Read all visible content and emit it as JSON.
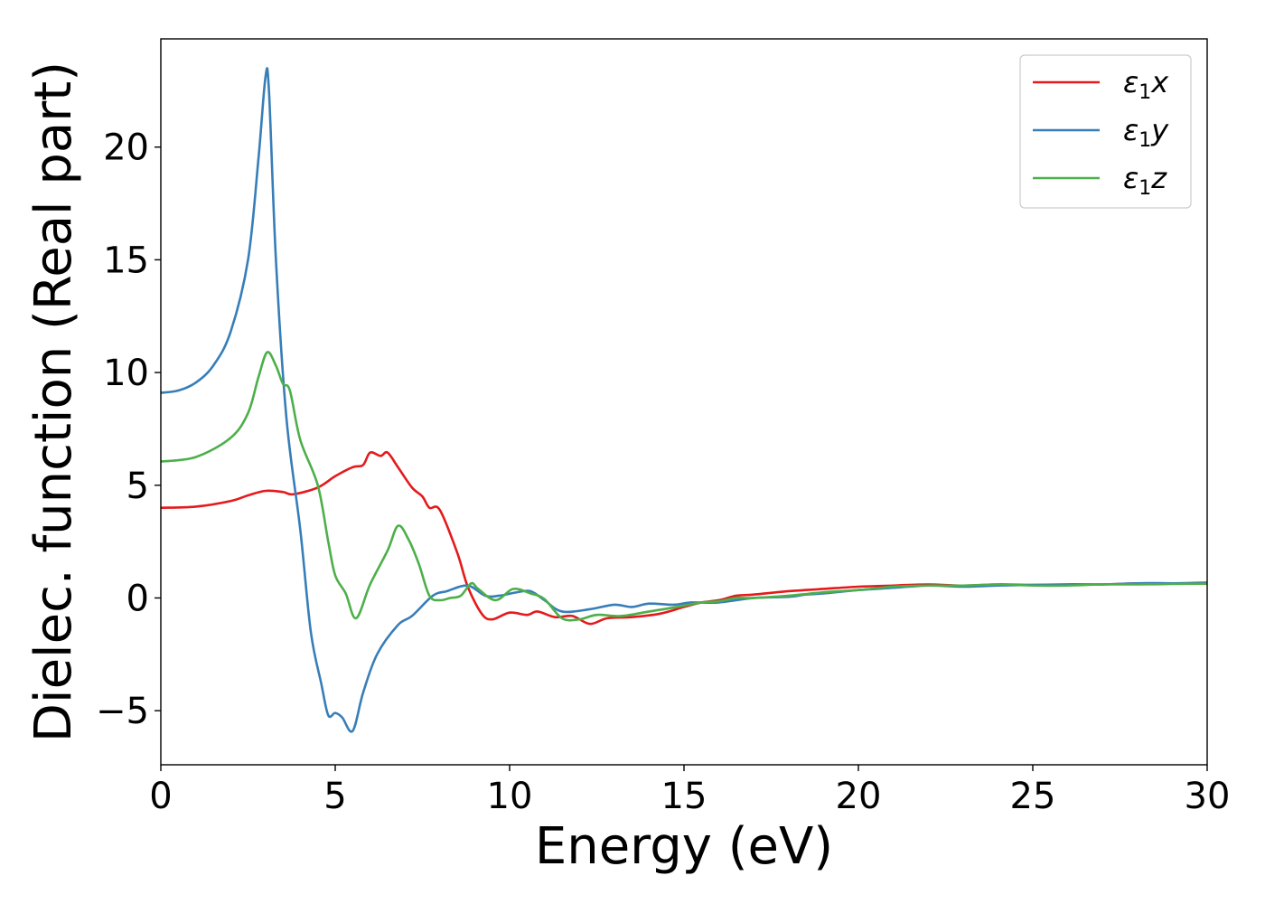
{
  "chart_data": {
    "type": "line",
    "xlabel": "Energy (eV)",
    "ylabel": "Dielec. function (Real part)",
    "xlim": [
      0,
      30
    ],
    "ylim": [
      -7.4,
      24.8
    ],
    "xticks": [
      0,
      5,
      10,
      15,
      20,
      25,
      30
    ],
    "yticks": [
      -5,
      0,
      5,
      10,
      15,
      20
    ],
    "xtick_labels": [
      "0",
      "5",
      "10",
      "15",
      "20",
      "25",
      "30"
    ],
    "ytick_labels": [
      "−5",
      "0",
      "5",
      "10",
      "15",
      "20"
    ],
    "grid": false,
    "legend_position": "top-right",
    "series": [
      {
        "name": "ε₁x",
        "legend_base": "ε",
        "legend_sub": "1",
        "legend_var": "x",
        "color": "#e41a1c",
        "points": [
          [
            0,
            4.0
          ],
          [
            1,
            4.05
          ],
          [
            2,
            4.3
          ],
          [
            2.5,
            4.55
          ],
          [
            3,
            4.75
          ],
          [
            3.5,
            4.7
          ],
          [
            3.8,
            4.6
          ],
          [
            4.5,
            4.9
          ],
          [
            5,
            5.4
          ],
          [
            5.5,
            5.8
          ],
          [
            5.8,
            5.9
          ],
          [
            6,
            6.45
          ],
          [
            6.3,
            6.3
          ],
          [
            6.5,
            6.45
          ],
          [
            6.8,
            5.8
          ],
          [
            7.2,
            4.9
          ],
          [
            7.5,
            4.5
          ],
          [
            7.7,
            4.0
          ],
          [
            8.0,
            3.9
          ],
          [
            8.5,
            2.0
          ],
          [
            8.8,
            0.5
          ],
          [
            9.2,
            -0.7
          ],
          [
            9.5,
            -0.95
          ],
          [
            10,
            -0.65
          ],
          [
            10.5,
            -0.75
          ],
          [
            10.8,
            -0.6
          ],
          [
            11.3,
            -0.85
          ],
          [
            11.8,
            -0.8
          ],
          [
            12.3,
            -1.15
          ],
          [
            12.8,
            -0.9
          ],
          [
            13.5,
            -0.85
          ],
          [
            14.3,
            -0.7
          ],
          [
            15,
            -0.4
          ],
          [
            15.5,
            -0.2
          ],
          [
            16,
            -0.1
          ],
          [
            16.5,
            0.1
          ],
          [
            17,
            0.15
          ],
          [
            18,
            0.3
          ],
          [
            19,
            0.4
          ],
          [
            20,
            0.5
          ],
          [
            21,
            0.55
          ],
          [
            22,
            0.6
          ],
          [
            23,
            0.55
          ],
          [
            24,
            0.6
          ],
          [
            25,
            0.58
          ],
          [
            26,
            0.6
          ],
          [
            27,
            0.6
          ],
          [
            28,
            0.65
          ],
          [
            29,
            0.65
          ],
          [
            30,
            0.68
          ]
        ]
      },
      {
        "name": "ε₁y",
        "legend_base": "ε",
        "legend_sub": "1",
        "legend_var": "y",
        "color": "#377eb8",
        "points": [
          [
            0,
            9.1
          ],
          [
            0.5,
            9.2
          ],
          [
            1,
            9.55
          ],
          [
            1.5,
            10.3
          ],
          [
            2,
            11.8
          ],
          [
            2.5,
            15.0
          ],
          [
            2.8,
            19.5
          ],
          [
            3.0,
            23.1
          ],
          [
            3.1,
            22.5
          ],
          [
            3.3,
            15.0
          ],
          [
            3.6,
            8.0
          ],
          [
            4.0,
            3.0
          ],
          [
            4.3,
            -1.5
          ],
          [
            4.6,
            -3.8
          ],
          [
            4.8,
            -5.2
          ],
          [
            5.0,
            -5.1
          ],
          [
            5.2,
            -5.3
          ],
          [
            5.5,
            -5.9
          ],
          [
            5.8,
            -4.2
          ],
          [
            6.2,
            -2.5
          ],
          [
            6.8,
            -1.2
          ],
          [
            7.2,
            -0.8
          ],
          [
            7.8,
            0.1
          ],
          [
            8.2,
            0.3
          ],
          [
            8.8,
            0.55
          ],
          [
            9.3,
            0.1
          ],
          [
            9.7,
            0.1
          ],
          [
            10.2,
            0.25
          ],
          [
            10.6,
            0.3
          ],
          [
            11.0,
            -0.1
          ],
          [
            11.5,
            -0.6
          ],
          [
            12.3,
            -0.5
          ],
          [
            13.0,
            -0.3
          ],
          [
            13.5,
            -0.4
          ],
          [
            14.0,
            -0.25
          ],
          [
            14.7,
            -0.3
          ],
          [
            15.2,
            -0.2
          ],
          [
            16,
            -0.2
          ],
          [
            17,
            0.0
          ],
          [
            18,
            0.05
          ],
          [
            18.5,
            0.15
          ],
          [
            19,
            0.2
          ],
          [
            20,
            0.35
          ],
          [
            21,
            0.45
          ],
          [
            22,
            0.55
          ],
          [
            23,
            0.5
          ],
          [
            24,
            0.55
          ],
          [
            25,
            0.58
          ],
          [
            26,
            0.6
          ],
          [
            27,
            0.6
          ],
          [
            28,
            0.65
          ],
          [
            29,
            0.65
          ],
          [
            30,
            0.65
          ]
        ]
      },
      {
        "name": "ε₁z",
        "legend_base": "ε",
        "legend_sub": "1",
        "legend_var": "z",
        "color": "#4daf4a",
        "points": [
          [
            0,
            6.05
          ],
          [
            1,
            6.25
          ],
          [
            2,
            7.1
          ],
          [
            2.5,
            8.2
          ],
          [
            2.8,
            9.8
          ],
          [
            3.05,
            10.9
          ],
          [
            3.3,
            10.3
          ],
          [
            3.5,
            9.5
          ],
          [
            3.7,
            9.2
          ],
          [
            4.0,
            7.0
          ],
          [
            4.5,
            5.0
          ],
          [
            4.8,
            2.5
          ],
          [
            5.0,
            1.0
          ],
          [
            5.3,
            0.2
          ],
          [
            5.6,
            -0.9
          ],
          [
            6.0,
            0.6
          ],
          [
            6.5,
            2.1
          ],
          [
            6.8,
            3.2
          ],
          [
            7.1,
            2.6
          ],
          [
            7.4,
            1.5
          ],
          [
            7.7,
            0.1
          ],
          [
            8.0,
            -0.1
          ],
          [
            8.3,
            0.0
          ],
          [
            8.6,
            0.1
          ],
          [
            8.9,
            0.65
          ],
          [
            9.1,
            0.4
          ],
          [
            9.6,
            -0.1
          ],
          [
            10.1,
            0.4
          ],
          [
            10.6,
            0.2
          ],
          [
            11.0,
            -0.05
          ],
          [
            11.5,
            -0.9
          ],
          [
            12.0,
            -0.95
          ],
          [
            12.5,
            -0.75
          ],
          [
            13.2,
            -0.8
          ],
          [
            14.0,
            -0.6
          ],
          [
            14.8,
            -0.4
          ],
          [
            15.5,
            -0.2
          ],
          [
            16,
            -0.15
          ],
          [
            16.5,
            0.0
          ],
          [
            17,
            0.0
          ],
          [
            18,
            0.1
          ],
          [
            19,
            0.25
          ],
          [
            20,
            0.35
          ],
          [
            21,
            0.5
          ],
          [
            22,
            0.55
          ],
          [
            23,
            0.55
          ],
          [
            24,
            0.6
          ],
          [
            25,
            0.55
          ],
          [
            26,
            0.55
          ],
          [
            27,
            0.6
          ],
          [
            28,
            0.6
          ],
          [
            29,
            0.62
          ],
          [
            30,
            0.63
          ]
        ]
      }
    ]
  }
}
